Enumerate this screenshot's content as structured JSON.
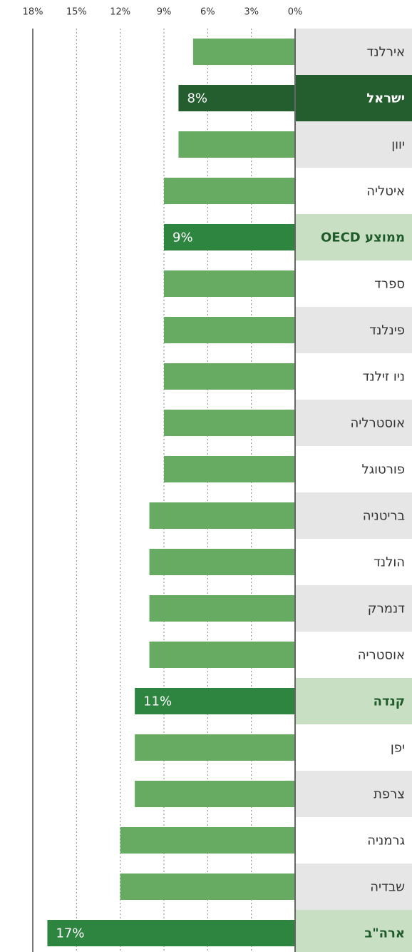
{
  "chart_data": {
    "type": "hbar",
    "categories": [
      "אירלנד",
      "ישראל",
      "יוון",
      "איטליה",
      "ממוצע OECD",
      "ספרד",
      "פינלנד",
      "ניו זילנד",
      "אוסטרליה",
      "פורטוגל",
      "בריטניה",
      "הולנד",
      "דנמרק",
      "אוסטריה",
      "קנדה",
      "יפן",
      "צרפת",
      "גרמניה",
      "שבדיה",
      "ארה\"ב"
    ],
    "values": [
      7,
      8,
      8,
      9,
      9,
      9,
      9,
      9,
      9,
      9,
      10,
      10,
      10,
      10,
      11,
      11,
      11,
      12,
      12,
      17
    ],
    "value_labels": [
      null,
      "8%",
      null,
      null,
      "9%",
      null,
      null,
      null,
      null,
      null,
      null,
      null,
      null,
      null,
      "11%",
      null,
      null,
      null,
      null,
      "17%"
    ],
    "colors": [
      "#66ab61",
      "#245e2e",
      "#66ab61",
      "#66ab61",
      "#2e8540",
      "#66ab61",
      "#66ab61",
      "#66ab61",
      "#66ab61",
      "#66ab61",
      "#66ab61",
      "#66ab61",
      "#66ab61",
      "#66ab61",
      "#2e8540",
      "#66ab61",
      "#66ab61",
      "#66ab61",
      "#66ab61",
      "#2e8540"
    ],
    "xlim": [
      0,
      18
    ],
    "xticks": [
      {
        "value": 18,
        "label": "18%"
      },
      {
        "value": 15,
        "label": "15%"
      },
      {
        "value": 12,
        "label": "12%"
      },
      {
        "value": 9,
        "label": "9%"
      },
      {
        "value": 6,
        "label": "6%"
      },
      {
        "value": 3,
        "label": "3%"
      },
      {
        "value": 0,
        "label": "0%"
      }
    ],
    "grid": true
  }
}
